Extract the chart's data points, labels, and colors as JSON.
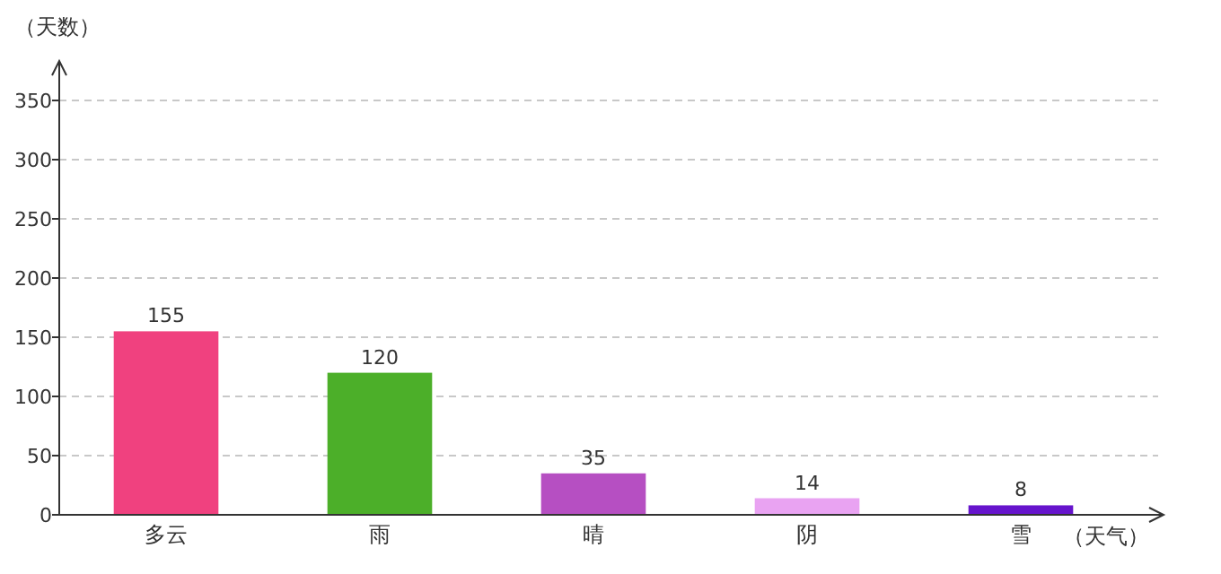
{
  "chart_data": {
    "type": "bar",
    "xlabel": "（天气）",
    "ylabel": "（天数）",
    "categories": [
      "多云",
      "雨",
      "晴",
      "阴",
      "雪"
    ],
    "values": [
      155,
      120,
      35,
      14,
      8
    ],
    "colors": [
      "#f0417f",
      "#4caf29",
      "#b64fc2",
      "#e9a3f2",
      "#6614cc"
    ],
    "ylim": [
      0,
      350
    ],
    "yticks": [
      0,
      50,
      100,
      150,
      200,
      250,
      300,
      350
    ],
    "grid": "y",
    "data_labels": true
  }
}
